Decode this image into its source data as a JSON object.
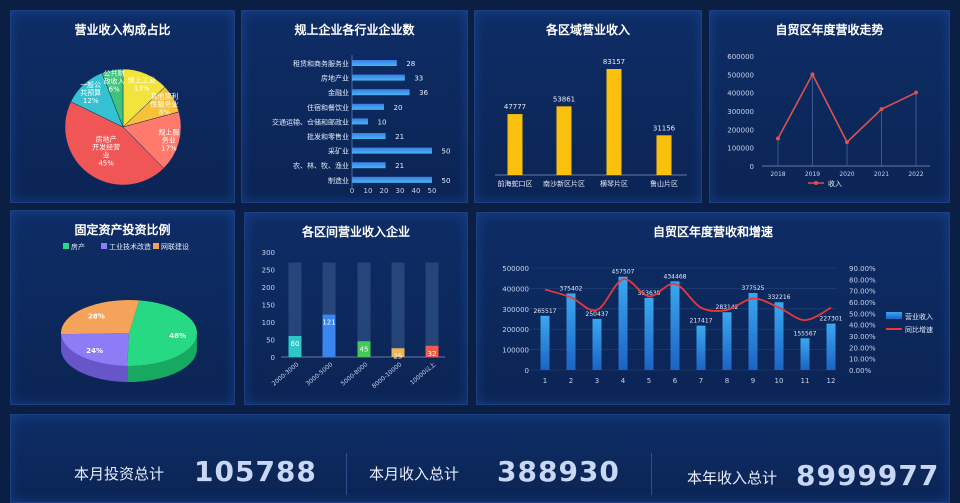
{
  "stats": [
    {
      "label": "本月投资总计",
      "value": "105788"
    },
    {
      "label": "本月收入总计",
      "value": "388930"
    },
    {
      "label": "本年收入总计",
      "value": "8999977"
    }
  ],
  "chart_data": [
    {
      "id": "revenue-pie",
      "type": "pie",
      "title": "营业收入构成占比",
      "slices": [
        {
          "label": "规上工业",
          "value": 13,
          "color": "#f2e33d"
        },
        {
          "label": "其他营利性服务业",
          "value": 8,
          "color": "#f7c23a"
        },
        {
          "label": "规上服务业",
          "value": 17,
          "color": "#ff7a6b"
        },
        {
          "label": "房地产开发经营业",
          "value": 45,
          "color": "#f05656"
        },
        {
          "label": "一般公共预算",
          "value": 12,
          "color": "#36c1d2"
        },
        {
          "label": "公共财政收入",
          "value": 6,
          "color": "#3fc27c"
        }
      ],
      "slice_labels": [
        "规上工业\n13%",
        "其他营利\n性服务业\n8%",
        "规上服\n务业\n17%",
        "房地产\n开发经营\n业\n45%",
        "一般公\n共预算\n12%",
        "公共财\n政收入\n6%"
      ]
    },
    {
      "id": "industry-bar",
      "type": "bar",
      "orientation": "horizontal",
      "title": "规上企业各行业企业数",
      "categories": [
        "租赁和商务服务业",
        "房地产业",
        "金融业",
        "住宿和餐饮业",
        "交通运输、仓储和邮政业",
        "批发和零售业",
        "采矿业",
        "农、林、牧、渔业",
        "制造业"
      ],
      "values": [
        28,
        33,
        36,
        20,
        10,
        21,
        50,
        21,
        50
      ],
      "xticks": [
        0,
        10,
        20,
        30,
        40,
        50
      ],
      "xlim": [
        0,
        50
      ]
    },
    {
      "id": "district-bar",
      "type": "bar",
      "title": "各区域营业收入",
      "categories": [
        "前海蛇口区",
        "南沙新区片区",
        "横琴片区",
        "鲁山片区"
      ],
      "values": [
        47777,
        53861,
        83157,
        31156
      ],
      "ylim": [
        0,
        90000
      ]
    },
    {
      "id": "trend-line",
      "type": "line",
      "title": "自贸区年度营收走势",
      "x": [
        "2018",
        "2019",
        "2020",
        "2021",
        "2022"
      ],
      "series": [
        {
          "name": "收入",
          "values": [
            150000,
            500000,
            130000,
            310000,
            400000
          ]
        }
      ],
      "yticks": [
        0,
        100000,
        200000,
        300000,
        400000,
        500000,
        600000
      ],
      "ylim": [
        0,
        600000
      ]
    },
    {
      "id": "investment-pie",
      "type": "pie",
      "title": "固定资产投资比例",
      "legend": [
        "房产",
        "工业技术改造",
        "网联建设"
      ],
      "slices": [
        {
          "label": "房产",
          "value": 48,
          "color": "#27d982"
        },
        {
          "label": "工业技术改造",
          "value": 24,
          "color": "#8c7cf5"
        },
        {
          "label": "网联建设",
          "value": 28,
          "color": "#f5a25a"
        }
      ],
      "slice_labels": [
        "48%",
        "24%",
        "28%"
      ]
    },
    {
      "id": "range-bar",
      "type": "bar",
      "title": "各区间营业收入企业",
      "categories": [
        "2000-3000",
        "3000-5000",
        "5000-8000",
        "8000-10000",
        "10000以上"
      ],
      "values": [
        60,
        121,
        45,
        25,
        32
      ],
      "colors": [
        "#2fc6c6",
        "#3a86ee",
        "#3fca5a",
        "#f2b35c",
        "#f05c4c"
      ],
      "yticks": [
        0,
        50,
        100,
        150,
        200,
        250,
        300
      ],
      "ylim": [
        0,
        300
      ],
      "background_max": 270
    },
    {
      "id": "monthly-combo",
      "type": "bar",
      "title": "自贸区年度营收和增速",
      "categories": [
        "1",
        "2",
        "3",
        "4",
        "5",
        "6",
        "7",
        "8",
        "9",
        "10",
        "11",
        "12"
      ],
      "series": [
        {
          "name": "营业收入",
          "type": "bar",
          "values": [
            265517,
            375402,
            250437,
            457507,
            353639,
            434468,
            217417,
            283142,
            377525,
            332216,
            155567,
            227301
          ]
        },
        {
          "name": "同比增速",
          "type": "line",
          "values": [
            71,
            64,
            53,
            80,
            65,
            76,
            55,
            53,
            63,
            55,
            44,
            55
          ]
        }
      ],
      "bar_labels": [
        "265517",
        "375402",
        "250437",
        "457507",
        "353639",
        "434468",
        "217417",
        "283142",
        "377525",
        "332216",
        "155567",
        "227301"
      ],
      "yticks": [
        "0",
        "100000",
        "200000",
        "300000",
        "400000",
        "500000"
      ],
      "y2ticks": [
        "0.00%",
        "10.00%",
        "20.00%",
        "30.00%",
        "40.00%",
        "50.00%",
        "60.00%",
        "70.00%",
        "80.00%",
        "90.00%"
      ],
      "ylim": [
        0,
        500000
      ],
      "y2lim": [
        0,
        90
      ]
    }
  ]
}
